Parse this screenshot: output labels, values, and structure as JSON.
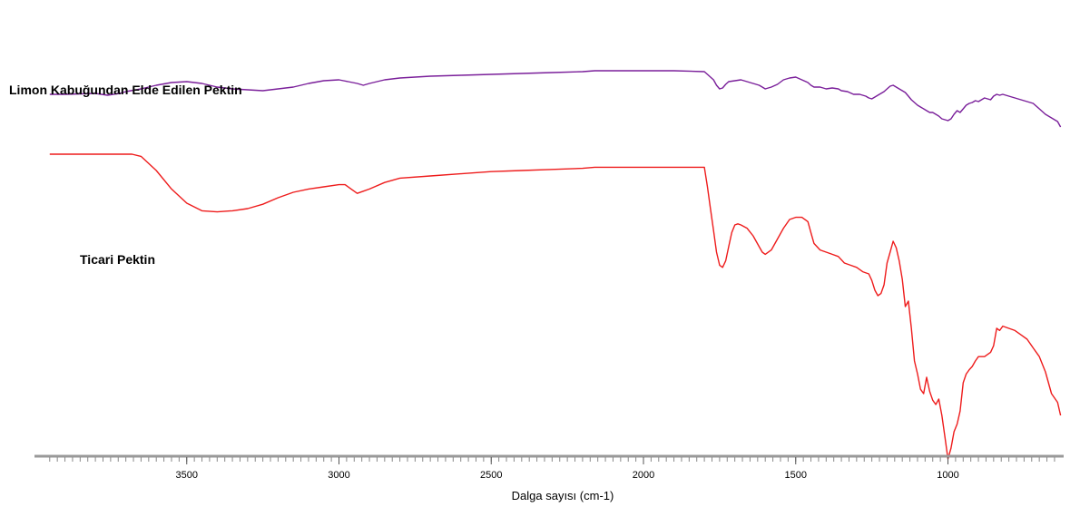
{
  "chart_data": {
    "type": "line",
    "x_direction": "descending",
    "xlim": [
      4000,
      620
    ],
    "xlabel": "Dalga sayısı  (cm-1)",
    "y_axis": "none",
    "grid": false,
    "legend": "inline labels",
    "x_ticks": [
      3500,
      3000,
      2500,
      2000,
      1500,
      1000
    ],
    "x_tick_labels": [
      "3500",
      "3000",
      "2500",
      "2000",
      "1500",
      "1000"
    ],
    "series": [
      {
        "name": "Limon Kabuğundan Elde Edilen Pektin",
        "color": "#7a1f9a",
        "x": [
          3950,
          3900,
          3800,
          3760,
          3720,
          3700,
          3650,
          3600,
          3550,
          3500,
          3450,
          3400,
          3350,
          3300,
          3250,
          3200,
          3150,
          3100,
          3050,
          3000,
          2970,
          2940,
          2920,
          2900,
          2850,
          2800,
          2700,
          2600,
          2500,
          2400,
          2300,
          2200,
          2160,
          2100,
          2000,
          1900,
          1800,
          1790,
          1770,
          1760,
          1750,
          1740,
          1730,
          1720,
          1700,
          1680,
          1660,
          1640,
          1620,
          1610,
          1600,
          1580,
          1560,
          1540,
          1520,
          1500,
          1480,
          1460,
          1450,
          1440,
          1420,
          1400,
          1380,
          1360,
          1350,
          1330,
          1310,
          1290,
          1270,
          1260,
          1250,
          1240,
          1230,
          1220,
          1210,
          1200,
          1190,
          1180,
          1170,
          1160,
          1150,
          1140,
          1130,
          1120,
          1110,
          1100,
          1090,
          1080,
          1070,
          1060,
          1050,
          1040,
          1030,
          1020,
          1010,
          1000,
          990,
          980,
          970,
          960,
          950,
          940,
          930,
          920,
          910,
          900,
          880,
          860,
          850,
          840,
          830,
          820,
          800,
          780,
          760,
          740,
          720,
          700,
          680,
          660,
          640,
          630
        ],
        "y": [
          86,
          86,
          85,
          87,
          85,
          83,
          80,
          76,
          73,
          72,
          74,
          78,
          80,
          81,
          82,
          80,
          78,
          74,
          71,
          70,
          72,
          74,
          76,
          74,
          70,
          68,
          66,
          65,
          64,
          63,
          62,
          61,
          60,
          60,
          60,
          60,
          61,
          64,
          70,
          76,
          80,
          79,
          75,
          72,
          71,
          70,
          72,
          74,
          76,
          78,
          80,
          78,
          75,
          70,
          68,
          67,
          70,
          73,
          76,
          78,
          78,
          80,
          79,
          80,
          82,
          83,
          86,
          86,
          88,
          90,
          91,
          89,
          87,
          85,
          83,
          80,
          77,
          76,
          78,
          80,
          82,
          84,
          88,
          92,
          95,
          98,
          100,
          102,
          104,
          106,
          106,
          108,
          110,
          113,
          114,
          115,
          113,
          108,
          104,
          106,
          102,
          98,
          96,
          95,
          93,
          94,
          90,
          92,
          88,
          86,
          87,
          86,
          88,
          90,
          92,
          94,
          96,
          102,
          108,
          112,
          116,
          122
        ],
        "y_unit_note": "y in %T reading down from top of panel"
      },
      {
        "name": "Ticari Pektin",
        "color": "#ee1c1c",
        "x": [
          3950,
          3900,
          3800,
          3700,
          3680,
          3650,
          3600,
          3550,
          3500,
          3450,
          3400,
          3350,
          3300,
          3250,
          3200,
          3150,
          3100,
          3050,
          3000,
          2980,
          2960,
          2940,
          2920,
          2900,
          2850,
          2800,
          2700,
          2600,
          2500,
          2400,
          2300,
          2200,
          2160,
          2100,
          2000,
          1900,
          1800,
          1790,
          1780,
          1770,
          1760,
          1750,
          1740,
          1730,
          1720,
          1710,
          1700,
          1690,
          1680,
          1660,
          1640,
          1620,
          1610,
          1600,
          1580,
          1560,
          1540,
          1520,
          1500,
          1480,
          1460,
          1450,
          1440,
          1420,
          1400,
          1380,
          1360,
          1340,
          1320,
          1300,
          1280,
          1260,
          1250,
          1240,
          1230,
          1220,
          1210,
          1200,
          1190,
          1180,
          1170,
          1160,
          1150,
          1140,
          1130,
          1120,
          1110,
          1100,
          1090,
          1080,
          1070,
          1060,
          1050,
          1040,
          1030,
          1020,
          1010,
          1000,
          990,
          980,
          970,
          960,
          950,
          940,
          930,
          920,
          910,
          900,
          880,
          860,
          850,
          840,
          830,
          820,
          800,
          780,
          760,
          740,
          720,
          700,
          680,
          660,
          640,
          630
        ],
        "y": [
          10,
          10,
          10,
          10,
          10,
          12,
          25,
          42,
          55,
          62,
          63,
          62,
          60,
          56,
          50,
          45,
          42,
          40,
          38,
          38,
          42,
          46,
          44,
          42,
          36,
          32,
          30,
          28,
          26,
          25,
          24,
          23,
          22,
          22,
          22,
          22,
          22,
          40,
          60,
          80,
          100,
          112,
          114,
          108,
          95,
          82,
          75,
          74,
          75,
          78,
          85,
          95,
          100,
          102,
          98,
          88,
          78,
          70,
          68,
          68,
          72,
          82,
          92,
          98,
          100,
          102,
          104,
          110,
          112,
          114,
          118,
          120,
          126,
          135,
          140,
          138,
          130,
          110,
          100,
          90,
          96,
          108,
          125,
          150,
          145,
          170,
          200,
          212,
          226,
          230,
          215,
          228,
          236,
          240,
          235,
          250,
          270,
          290,
          280,
          265,
          258,
          246,
          220,
          212,
          208,
          205,
          200,
          196,
          196,
          192,
          186,
          170,
          172,
          168,
          170,
          172,
          176,
          180,
          188,
          196,
          210,
          230,
          238,
          250
        ]
      }
    ]
  }
}
